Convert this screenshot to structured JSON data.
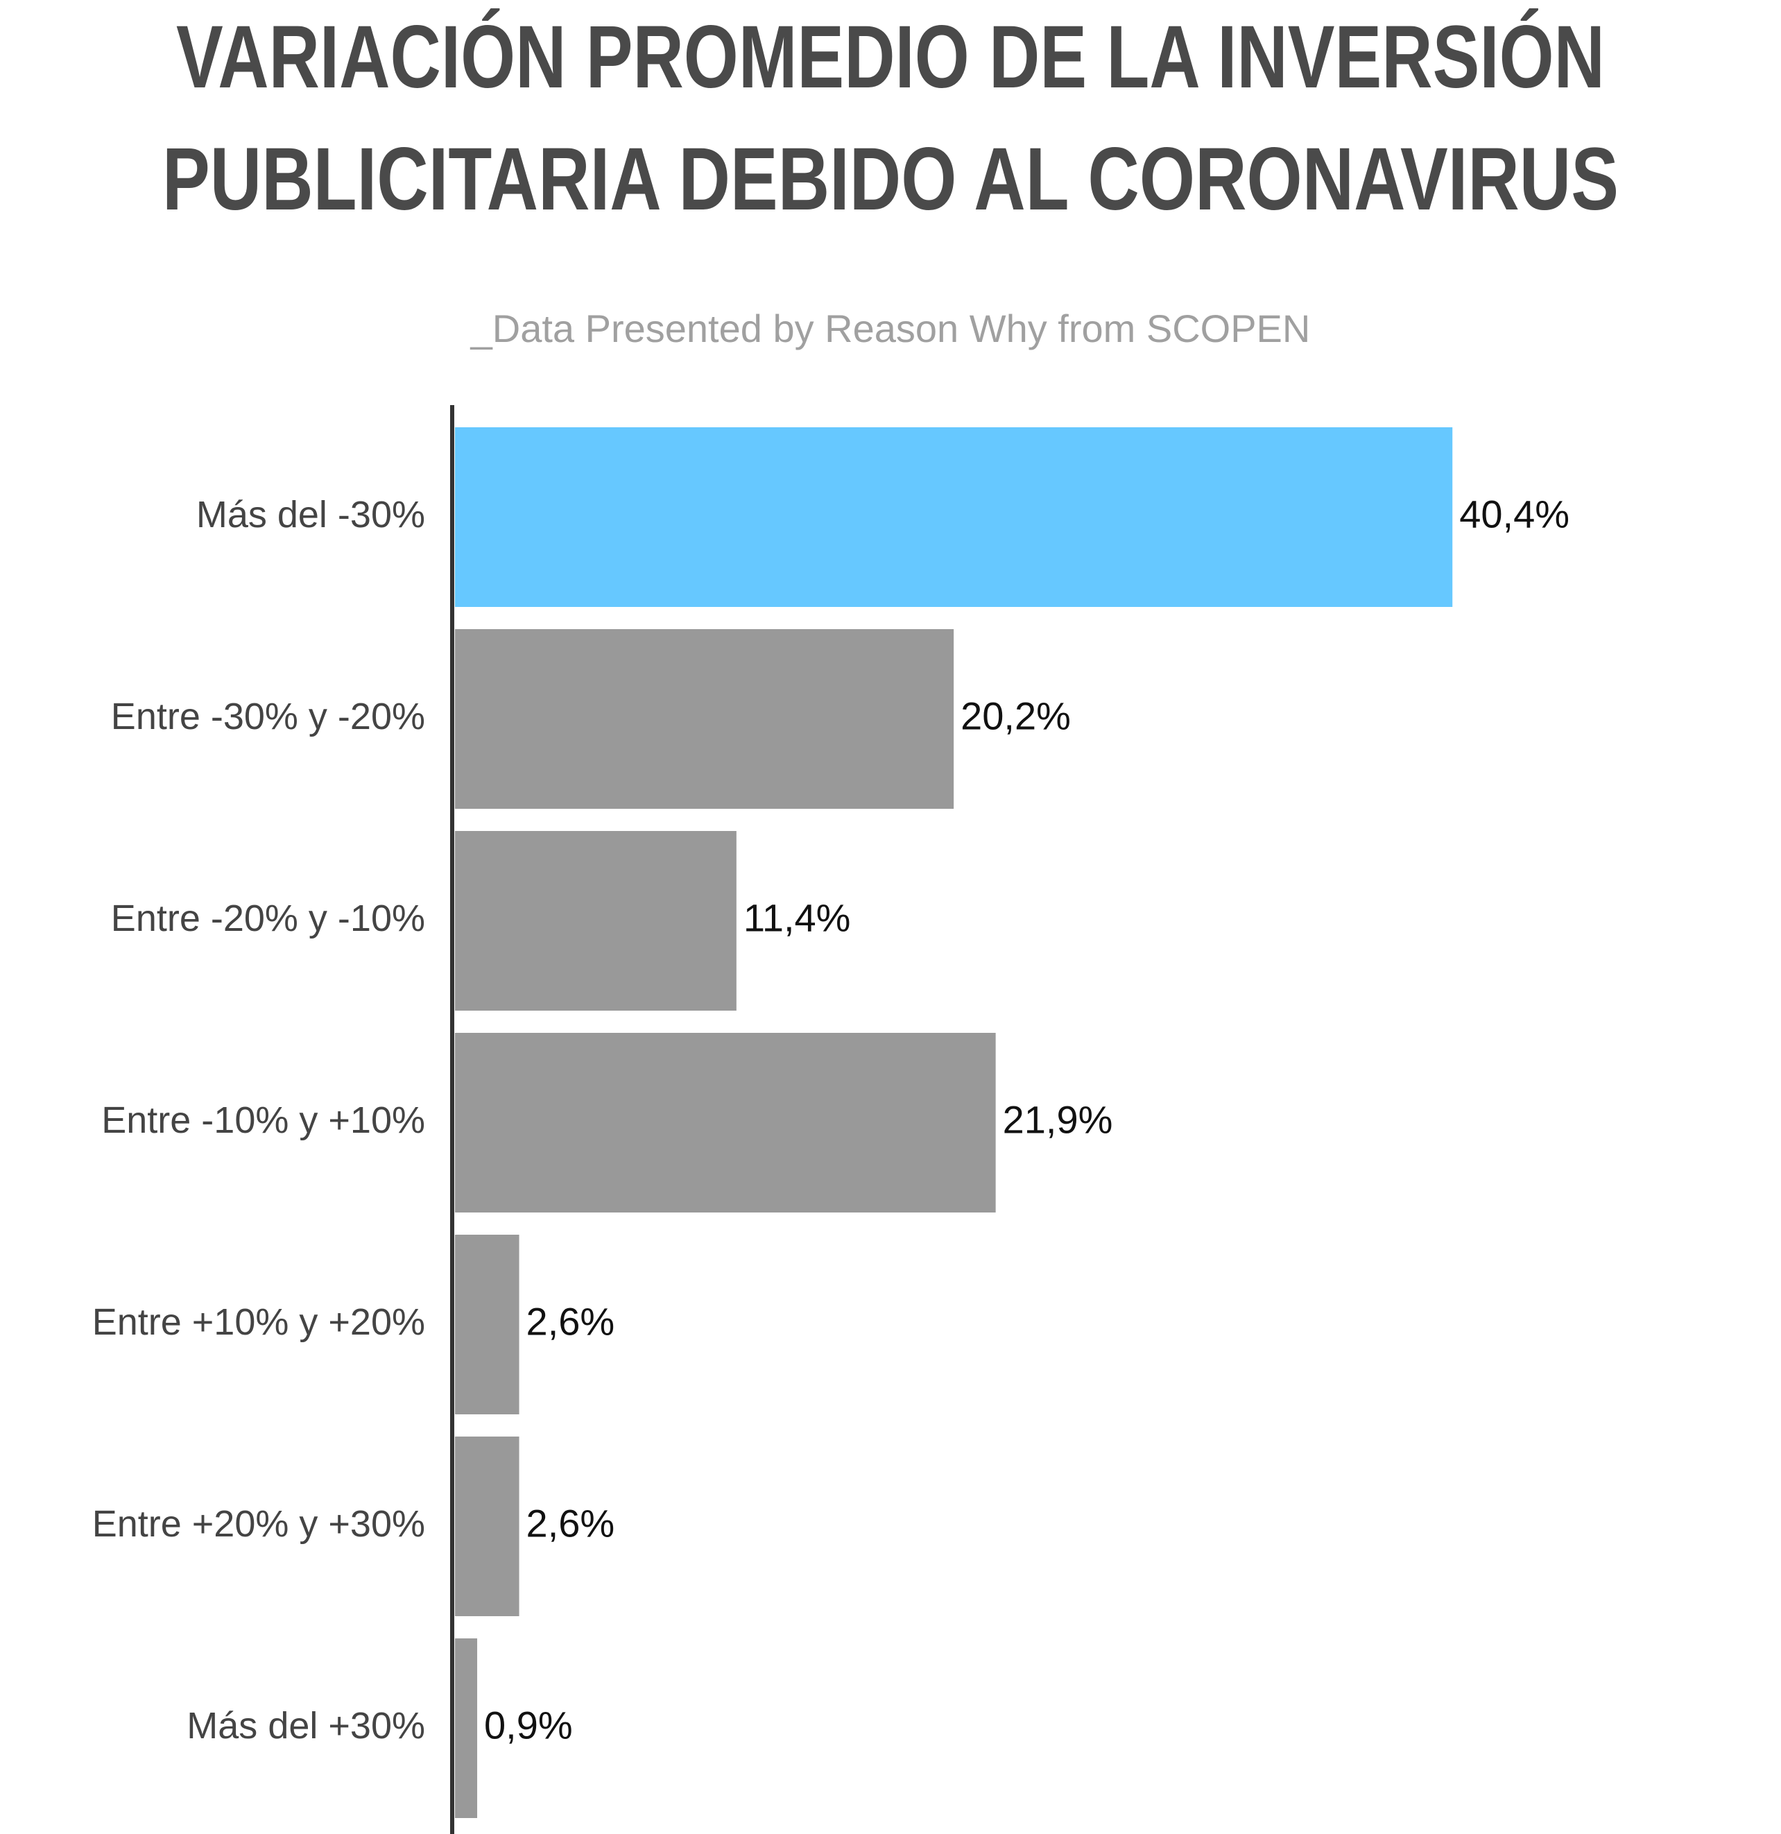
{
  "chart_data": {
    "type": "bar",
    "orientation": "horizontal",
    "title": [
      "VARIACIÓN PROMEDIO DE LA INVERSIÓN",
      "PUBLICITARIA DEBIDO AL CORONAVIRUS"
    ],
    "subtitle": "_Data Presented by Reason Why from SCOPEN",
    "categories": [
      "Más del -30%",
      "Entre -30% y -20%",
      "Entre -20% y -10%",
      "Entre -10% y +10%",
      "Entre +10% y +20%",
      "Entre +20% y +30%",
      "Más del +30%"
    ],
    "values": [
      40.4,
      20.2,
      11.4,
      21.9,
      2.6,
      2.6,
      0.9
    ],
    "value_labels": [
      "40,4%",
      "20,2%",
      "11,4%",
      "21,9%",
      "2,6%",
      "2,6%",
      "0,9%"
    ],
    "colors": [
      "#66c8ff",
      "#999999",
      "#999999",
      "#999999",
      "#999999",
      "#999999",
      "#999999"
    ],
    "xlim": [
      0,
      50
    ]
  }
}
